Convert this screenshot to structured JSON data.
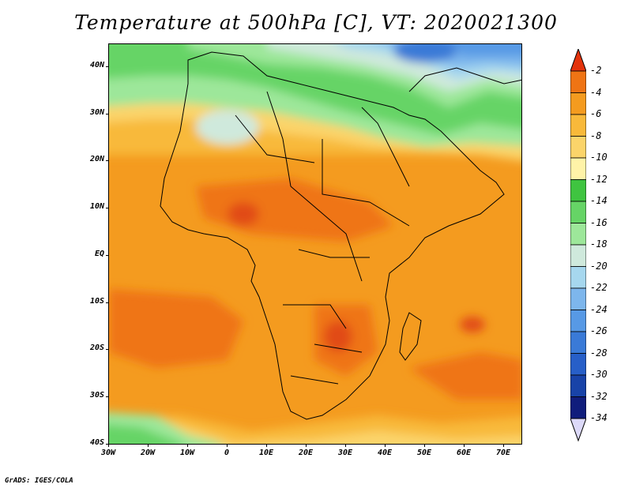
{
  "title": "Temperature at 500hPa [C], VT: 2020021300",
  "credit": "GrADS: IGES/COLA",
  "lat_labels": [
    "40N",
    "30N",
    "20N",
    "10N",
    "EQ",
    "10S",
    "20S",
    "30S",
    "40S"
  ],
  "lon_labels": [
    "30W",
    "20W",
    "10W",
    "0",
    "10E",
    "20E",
    "30E",
    "40E",
    "50E",
    "60E",
    "70E"
  ],
  "colorbar": {
    "labels": [
      "-2",
      "-4",
      "-6",
      "-8",
      "-10",
      "-12",
      "-14",
      "-16",
      "-18",
      "-20",
      "-22",
      "-24",
      "-26",
      "-28",
      "-30",
      "-32",
      "-34"
    ],
    "colors": [
      "#e14b12",
      "#ef7414",
      "#f49b1f",
      "#f8b93a",
      "#fbd46a",
      "#fff3a8",
      "#3fc440",
      "#66d466",
      "#9de79a",
      "#cfe9dc",
      "#a6d7ee",
      "#7db6ec",
      "#5799e5",
      "#3a7ad7",
      "#275fc8",
      "#1843a8",
      "#101d7c"
    ],
    "over_color": "#e3330c",
    "under_color": "#dcd9f8"
  },
  "map": {
    "region": "Africa",
    "lon_range": [
      -30,
      75
    ],
    "lat_range": [
      -40,
      45
    ],
    "field": "Temperature at 500hPa",
    "units": "C"
  }
}
